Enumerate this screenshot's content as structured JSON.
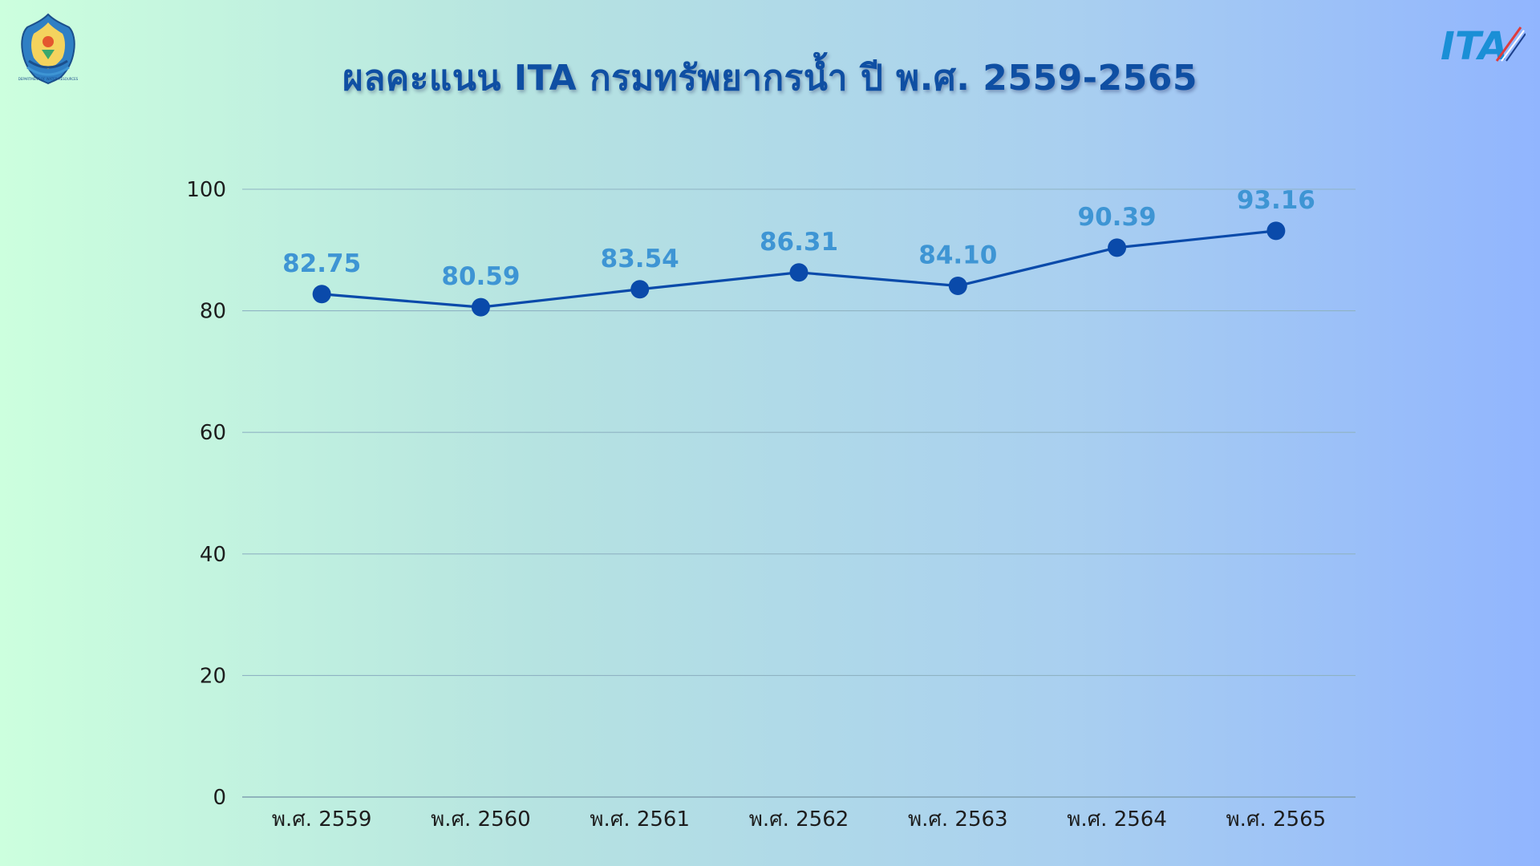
{
  "header": {
    "title": "ผลคะแนน ITA กรมทรัพยากรน้ำ ปี พ.ศ. 2559-2565"
  },
  "logos": {
    "left_icon": "department-of-water-resources-emblem",
    "left_text": "DEPARTMENT OF WATER RESOURCES",
    "right_icon": "ita-logo",
    "right_text": "ITA"
  },
  "colors": {
    "line": "#0a4aaa",
    "marker": "#0a4aaa",
    "data_label": "#3e95d4",
    "gridline": "#8fb3c3",
    "title": "#0f4fa3"
  },
  "chart_data": {
    "type": "line",
    "title": "ผลคะแนน ITA กรมทรัพยากรน้ำ ปี พ.ศ. 2559-2565",
    "xlabel": "",
    "ylabel": "",
    "categories": [
      "พ.ศ. 2559",
      "พ.ศ. 2560",
      "พ.ศ. 2561",
      "พ.ศ. 2562",
      "พ.ศ. 2563",
      "พ.ศ. 2564",
      "พ.ศ. 2565"
    ],
    "series": [
      {
        "values": [
          82.75,
          80.59,
          83.54,
          86.31,
          84.1,
          90.39,
          93.16
        ],
        "labels": [
          "82.75",
          "80.59",
          "83.54",
          "86.31",
          "84.10",
          "90.39",
          "93.16"
        ]
      }
    ],
    "ylim": [
      0,
      100
    ],
    "yticks": [
      0,
      20,
      40,
      60,
      80,
      100
    ],
    "ytick_labels": [
      "0",
      "20",
      "40",
      "60",
      "80",
      "100"
    ],
    "grid": true,
    "legend": "none",
    "markers": true,
    "data_labels": true
  }
}
